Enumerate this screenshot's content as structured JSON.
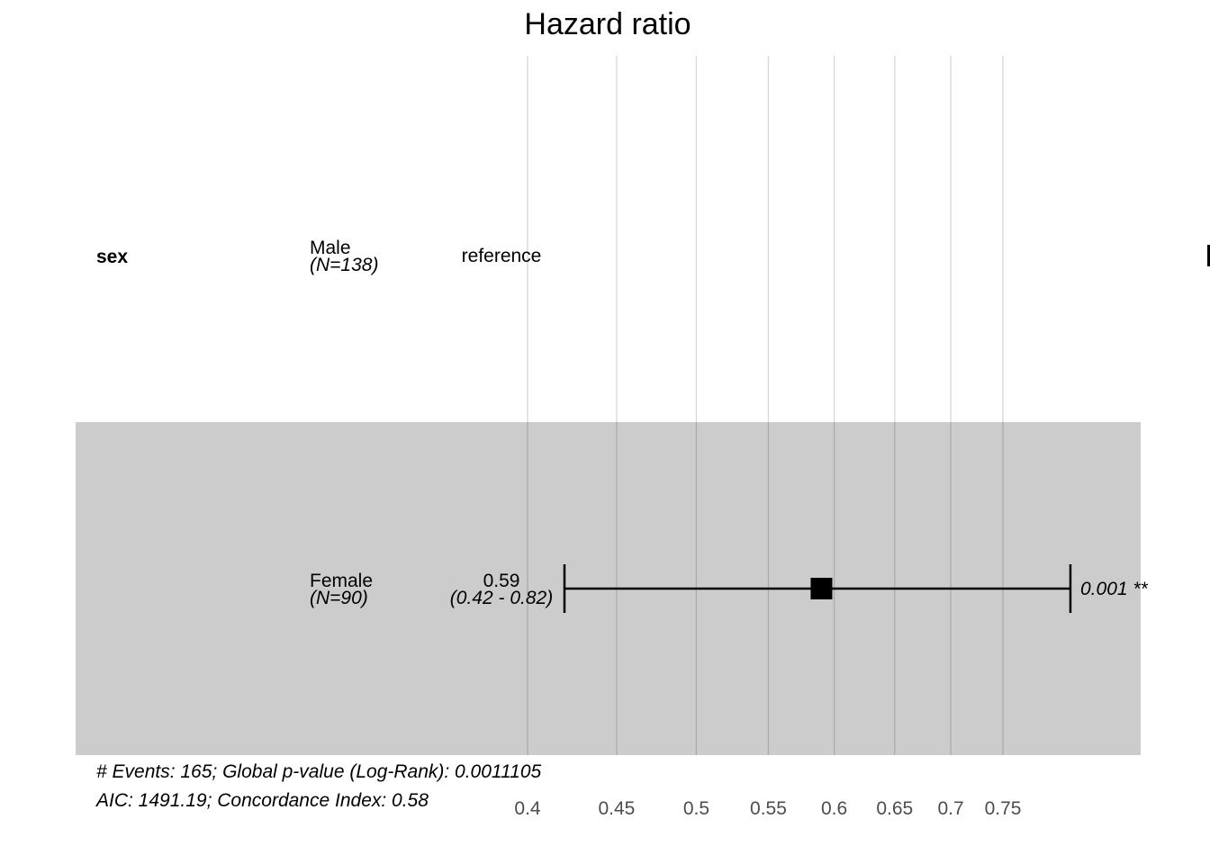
{
  "chart_data": {
    "type": "forest",
    "title": "Hazard ratio",
    "x_scale": "log",
    "xlim": [
      0.4,
      0.8
    ],
    "x_ticks": [
      "0.4",
      "0.45",
      "0.5",
      "0.55",
      "0.6",
      "0.65",
      "0.7",
      "0.75"
    ],
    "x_tick_values": [
      0.4,
      0.45,
      0.5,
      0.55,
      0.6,
      0.65,
      0.7,
      0.75
    ],
    "grid": true,
    "variable": "sex",
    "rows": [
      {
        "level": "Male",
        "n": "(N=138)",
        "estimate_text": "reference",
        "ci_text": "",
        "p_text": "",
        "hr": null,
        "ci_low": null,
        "ci_high": null
      },
      {
        "level": "Female",
        "n": "(N=90)",
        "estimate_text": "0.59",
        "ci_text": "(0.42 - 0.82)",
        "p_text": "0.001 **",
        "hr": 0.59,
        "ci_low": 0.42,
        "ci_high": 0.82
      }
    ],
    "footnotes": [
      "# Events: 165; Global p-value (Log-Rank): 0.0011105",
      "AIC: 1491.19; Concordance Index: 0.58"
    ]
  }
}
